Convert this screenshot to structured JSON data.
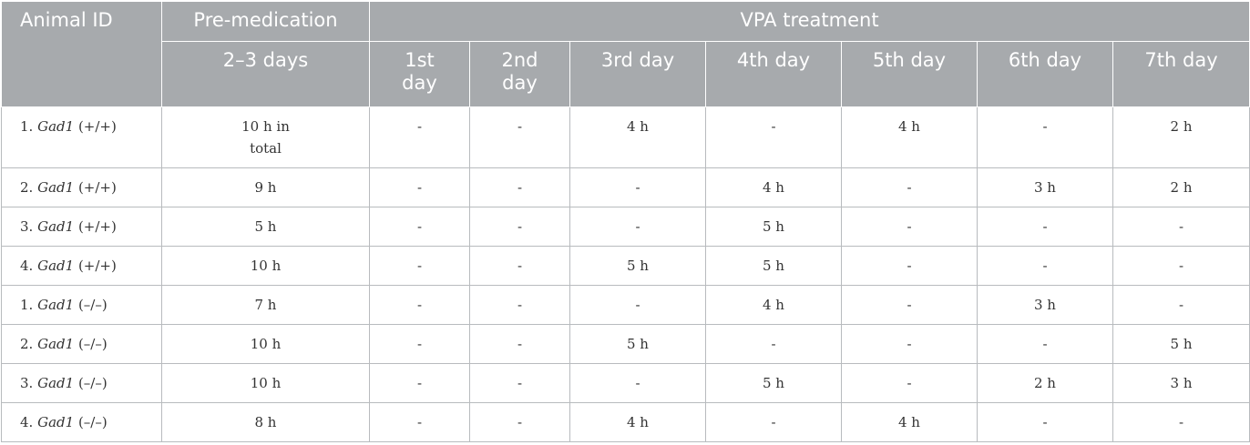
{
  "header": {
    "animal_id": "Animal ID",
    "pre_medication": "Pre-medication",
    "vpa_treatment": "VPA treatment",
    "pre_days": "2–3 days",
    "days": [
      "1st day",
      "2nd day",
      "3rd day",
      "4th day",
      "5th day",
      "6th day",
      "7th day"
    ]
  },
  "rows": [
    {
      "num": "1.",
      "gene": "Gad1",
      "genotype": "(+/+)",
      "pre": "10 h in total",
      "d1": "-",
      "d2": "-",
      "d3": "4 h",
      "d4": "-",
      "d5": "4 h",
      "d6": "-",
      "d7": "2 h"
    },
    {
      "num": "2.",
      "gene": "Gad1",
      "genotype": "(+/+)",
      "pre": "9 h",
      "d1": "-",
      "d2": "-",
      "d3": "-",
      "d4": "4 h",
      "d5": "-",
      "d6": "3 h",
      "d7": "2 h"
    },
    {
      "num": "3.",
      "gene": "Gad1",
      "genotype": "(+/+)",
      "pre": "5 h",
      "d1": "-",
      "d2": "-",
      "d3": "-",
      "d4": "5 h",
      "d5": "-",
      "d6": "-",
      "d7": "-"
    },
    {
      "num": "4.",
      "gene": "Gad1",
      "genotype": "(+/+)",
      "pre": "10 h",
      "d1": "-",
      "d2": "-",
      "d3": "5 h",
      "d4": "5 h",
      "d5": "-",
      "d6": "-",
      "d7": "-"
    },
    {
      "num": "1.",
      "gene": "Gad1",
      "genotype": "(–/–)",
      "pre": "7 h",
      "d1": "-",
      "d2": "-",
      "d3": "-",
      "d4": "4 h",
      "d5": "-",
      "d6": "3 h",
      "d7": "-"
    },
    {
      "num": "2.",
      "gene": "Gad1",
      "genotype": "(–/–)",
      "pre": "10 h",
      "d1": "-",
      "d2": "-",
      "d3": "5 h",
      "d4": "-",
      "d5": "-",
      "d6": "-",
      "d7": "5 h"
    },
    {
      "num": "3.",
      "gene": "Gad1",
      "genotype": "(–/–)",
      "pre": "10 h",
      "d1": "-",
      "d2": "-",
      "d3": "-",
      "d4": "5 h",
      "d5": "-",
      "d6": "2 h",
      "d7": "3 h"
    },
    {
      "num": "4.",
      "gene": "Gad1",
      "genotype": "(–/–)",
      "pre": "8 h",
      "d1": "-",
      "d2": "-",
      "d3": "4 h",
      "d4": "-",
      "d5": "4 h",
      "d6": "-",
      "d7": "-"
    }
  ]
}
